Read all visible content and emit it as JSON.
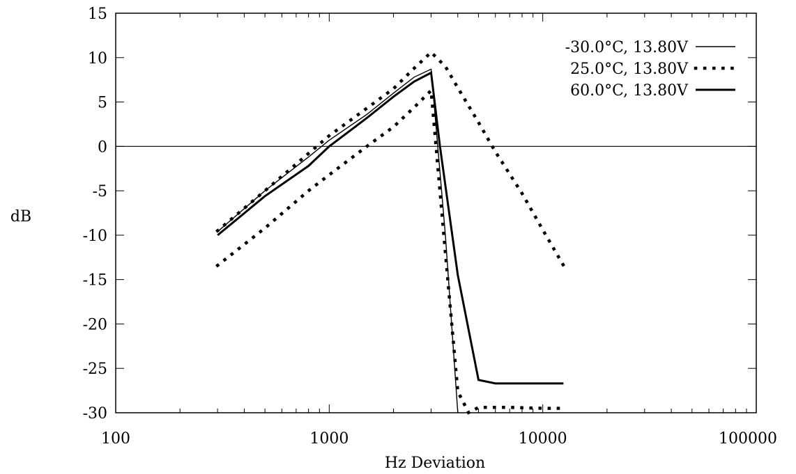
{
  "chart_data": {
    "type": "line",
    "xscale": "log",
    "xlim": [
      100,
      100000
    ],
    "ylim": [
      -30,
      15
    ],
    "xlabel": "Hz Deviation",
    "ylabel": "dB",
    "xticks": [
      100,
      1000,
      10000,
      100000
    ],
    "xtick_labels": [
      "100",
      "1000",
      "10000",
      "100000"
    ],
    "yticks": [
      15,
      10,
      5,
      0,
      -5,
      -10,
      -15,
      -20,
      -25,
      -30
    ],
    "ytick_labels": [
      "15",
      "10",
      "5",
      "0",
      "-5",
      "-10",
      "-15",
      "-20",
      "-25",
      "-30"
    ],
    "zero_line": true,
    "grid": false,
    "legend_position": "top-right",
    "series": [
      {
        "name": "-30.0°C, 13.80V",
        "style": "thin-solid",
        "points": [
          [
            300,
            -9.6
          ],
          [
            500,
            -5.0
          ],
          [
            800,
            -1.2
          ],
          [
            1000,
            0.7
          ],
          [
            1500,
            3.6
          ],
          [
            2000,
            6.0
          ],
          [
            2500,
            7.8
          ],
          [
            3000,
            8.7
          ],
          [
            3500,
            -10
          ],
          [
            4000,
            -30
          ]
        ]
      },
      {
        "name": "25.0°C, 13.80V",
        "style": "dotted",
        "points": [
          [
            300,
            -9.5
          ],
          [
            500,
            -5.0
          ],
          [
            1000,
            1.2
          ],
          [
            1500,
            4.3
          ],
          [
            2000,
            6.5
          ],
          [
            2500,
            8.8
          ],
          [
            3000,
            10.6
          ],
          [
            3500,
            9.0
          ],
          [
            4000,
            6.6
          ],
          [
            5000,
            2.7
          ],
          [
            6000,
            -0.6
          ],
          [
            8000,
            -5.3
          ],
          [
            10000,
            -9.4
          ],
          [
            12500,
            -13.4
          ]
        ],
        "points_lower": [
          [
            300,
            -13.4
          ],
          [
            500,
            -9.2
          ],
          [
            800,
            -5.0
          ],
          [
            1000,
            -3.2
          ],
          [
            1500,
            0.0
          ],
          [
            2000,
            2.2
          ],
          [
            2500,
            4.4
          ],
          [
            3000,
            6.3
          ],
          [
            3500,
            -12
          ],
          [
            4000,
            -27.6
          ],
          [
            4500,
            -30
          ],
          [
            5000,
            -29.4
          ],
          [
            7000,
            -29.4
          ],
          [
            10000,
            -29.5
          ],
          [
            12000,
            -29.5
          ]
        ]
      },
      {
        "name": "60.0°C, 13.80V",
        "style": "thick-solid",
        "points": [
          [
            300,
            -10.0
          ],
          [
            500,
            -5.6
          ],
          [
            800,
            -2.2
          ],
          [
            1000,
            0.0
          ],
          [
            1500,
            3.2
          ],
          [
            2000,
            5.6
          ],
          [
            2500,
            7.3
          ],
          [
            3000,
            8.3
          ],
          [
            3300,
            0.0
          ],
          [
            4000,
            -14.5
          ],
          [
            5000,
            -26.3
          ],
          [
            6000,
            -26.7
          ],
          [
            12500,
            -26.7
          ]
        ]
      }
    ]
  }
}
